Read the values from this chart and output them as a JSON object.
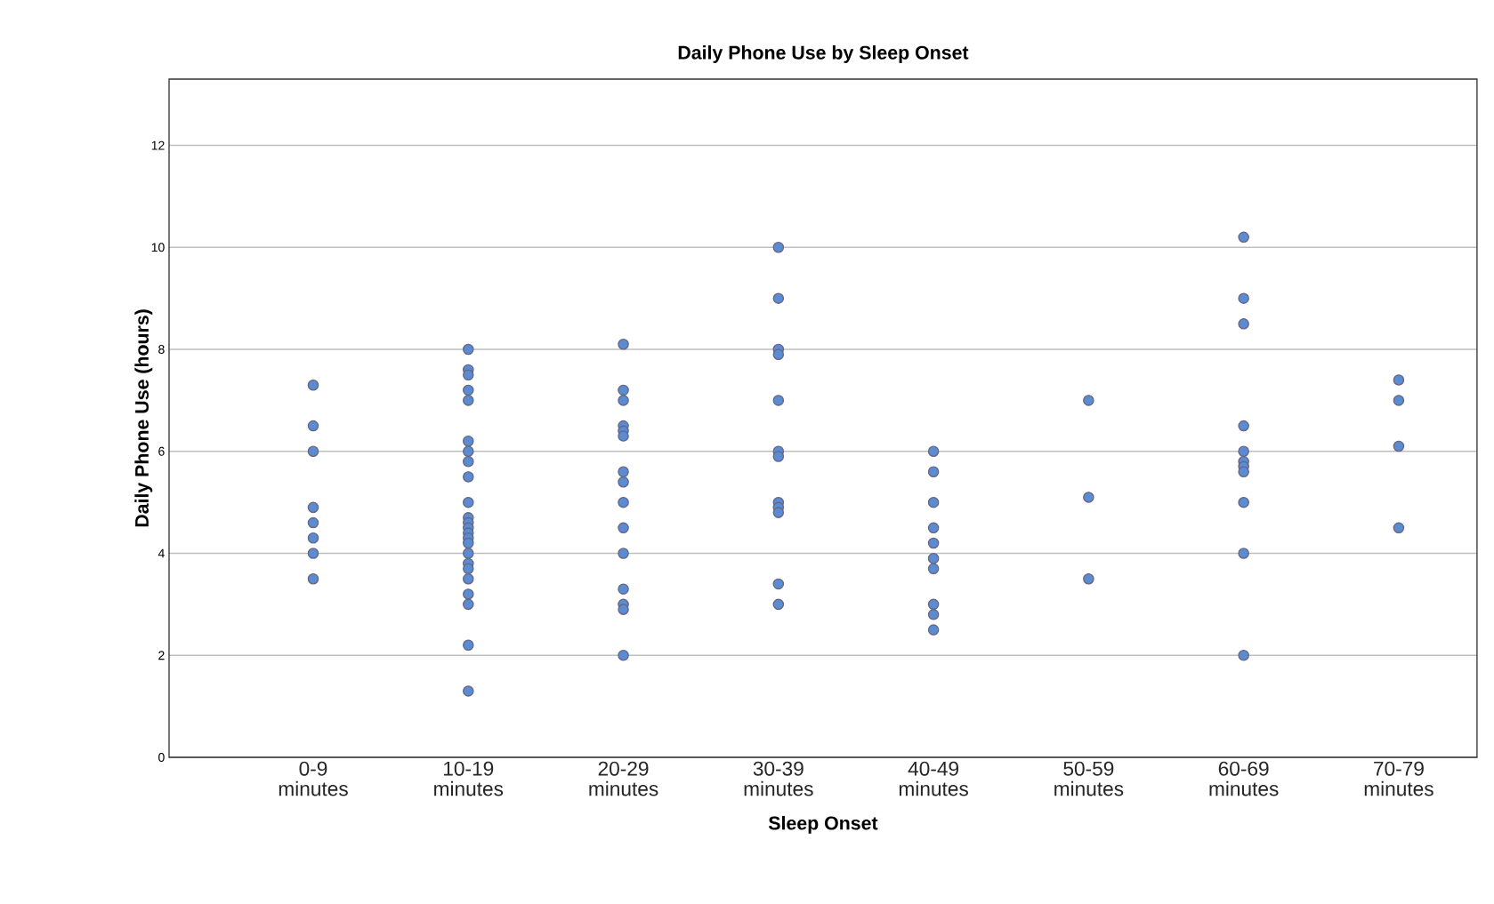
{
  "chart_data": {
    "type": "scatter",
    "title": "Daily Phone Use by Sleep Onset",
    "xlabel": "Sleep Onset",
    "ylabel": "Daily Phone Use (hours)",
    "categories": [
      "0-9 minutes",
      "10-19 minutes",
      "20-29 minutes",
      "30-39 minutes",
      "40-49 minutes",
      "50-59 minutes",
      "60-69 minutes",
      "70-79 minutes"
    ],
    "ylim": [
      0,
      13.3
    ],
    "yticks": [
      0,
      2,
      4,
      6,
      8,
      10,
      12
    ],
    "grid": "y",
    "marker": "circle",
    "series": [
      {
        "color": "#5b8bd0",
        "x": [
          "0-9 minutes",
          "0-9 minutes",
          "0-9 minutes",
          "0-9 minutes",
          "0-9 minutes",
          "0-9 minutes",
          "0-9 minutes",
          "0-9 minutes",
          "10-19 minutes",
          "10-19 minutes",
          "10-19 minutes",
          "10-19 minutes",
          "10-19 minutes",
          "10-19 minutes",
          "10-19 minutes",
          "10-19 minutes",
          "10-19 minutes",
          "10-19 minutes",
          "10-19 minutes",
          "10-19 minutes",
          "10-19 minutes",
          "10-19 minutes",
          "10-19 minutes",
          "10-19 minutes",
          "10-19 minutes",
          "10-19 minutes",
          "10-19 minutes",
          "10-19 minutes",
          "10-19 minutes",
          "10-19 minutes",
          "10-19 minutes",
          "10-19 minutes",
          "20-29 minutes",
          "20-29 minutes",
          "20-29 minutes",
          "20-29 minutes",
          "20-29 minutes",
          "20-29 minutes",
          "20-29 minutes",
          "20-29 minutes",
          "20-29 minutes",
          "20-29 minutes",
          "20-29 minutes",
          "20-29 minutes",
          "20-29 minutes",
          "20-29 minutes",
          "20-29 minutes",
          "30-39 minutes",
          "30-39 minutes",
          "30-39 minutes",
          "30-39 minutes",
          "30-39 minutes",
          "30-39 minutes",
          "30-39 minutes",
          "30-39 minutes",
          "30-39 minutes",
          "30-39 minutes",
          "30-39 minutes",
          "30-39 minutes",
          "40-49 minutes",
          "40-49 minutes",
          "40-49 minutes",
          "40-49 minutes",
          "40-49 minutes",
          "40-49 minutes",
          "40-49 minutes",
          "40-49 minutes",
          "40-49 minutes",
          "40-49 minutes",
          "50-59 minutes",
          "50-59 minutes",
          "50-59 minutes",
          "60-69 minutes",
          "60-69 minutes",
          "60-69 minutes",
          "60-69 minutes",
          "60-69 minutes",
          "60-69 minutes",
          "60-69 minutes",
          "60-69 minutes",
          "60-69 minutes",
          "60-69 minutes",
          "60-69 minutes",
          "70-79 minutes",
          "70-79 minutes",
          "70-79 minutes",
          "70-79 minutes"
        ],
        "values": [
          7.3,
          6.5,
          6.0,
          4.9,
          4.6,
          4.3,
          4.0,
          3.5,
          8.0,
          7.6,
          7.5,
          7.2,
          7.0,
          6.2,
          6.0,
          5.8,
          5.5,
          5.0,
          4.7,
          4.6,
          4.5,
          4.4,
          4.3,
          4.2,
          4.0,
          3.8,
          3.7,
          3.5,
          3.2,
          3.0,
          2.2,
          1.3,
          8.1,
          7.2,
          7.0,
          6.5,
          6.4,
          6.3,
          5.6,
          5.4,
          5.0,
          4.5,
          4.0,
          3.3,
          3.0,
          2.9,
          2.0,
          10.0,
          9.0,
          8.0,
          7.9,
          7.0,
          6.0,
          5.9,
          5.0,
          4.9,
          4.8,
          3.4,
          3.0,
          6.0,
          5.6,
          5.0,
          4.5,
          4.2,
          3.9,
          3.7,
          3.0,
          2.8,
          2.5,
          7.0,
          5.1,
          3.5,
          10.2,
          9.0,
          8.5,
          6.5,
          6.0,
          5.8,
          5.7,
          5.6,
          5.0,
          4.0,
          2.0,
          7.4,
          7.0,
          6.1,
          4.5
        ]
      }
    ]
  }
}
